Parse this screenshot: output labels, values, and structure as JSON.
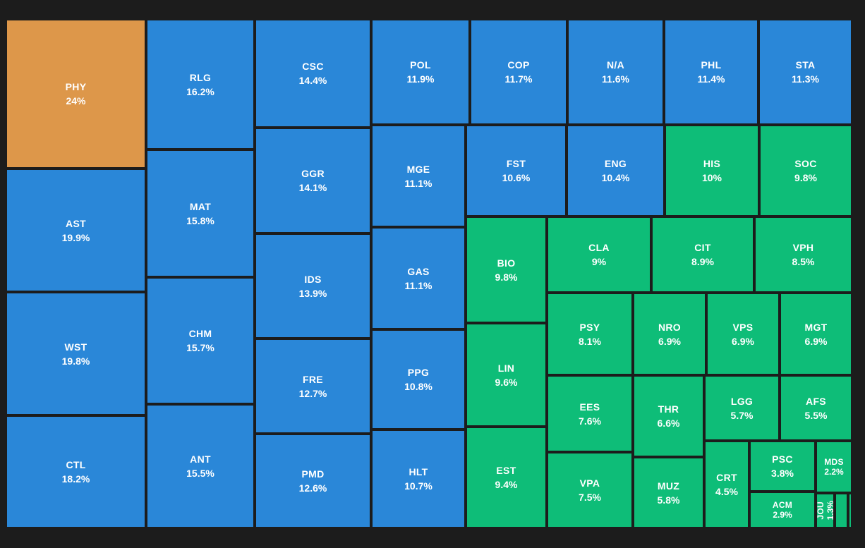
{
  "chart_data": {
    "type": "treemap",
    "colors": {
      "blue": "#2a87d8",
      "green": "#0ebd78",
      "orange": "#dd974a"
    },
    "items": [
      {
        "label": "PHY",
        "value": 24,
        "display": "24%",
        "color": "orange"
      },
      {
        "label": "AST",
        "value": 19.9,
        "display": "19.9%",
        "color": "blue"
      },
      {
        "label": "WST",
        "value": 19.8,
        "display": "19.8%",
        "color": "blue"
      },
      {
        "label": "CTL",
        "value": 18.2,
        "display": "18.2%",
        "color": "blue"
      },
      {
        "label": "RLG",
        "value": 16.2,
        "display": "16.2%",
        "color": "blue"
      },
      {
        "label": "MAT",
        "value": 15.8,
        "display": "15.8%",
        "color": "blue"
      },
      {
        "label": "CHM",
        "value": 15.7,
        "display": "15.7%",
        "color": "blue"
      },
      {
        "label": "ANT",
        "value": 15.5,
        "display": "15.5%",
        "color": "blue"
      },
      {
        "label": "CSC",
        "value": 14.4,
        "display": "14.4%",
        "color": "blue"
      },
      {
        "label": "GGR",
        "value": 14.1,
        "display": "14.1%",
        "color": "blue"
      },
      {
        "label": "IDS",
        "value": 13.9,
        "display": "13.9%",
        "color": "blue"
      },
      {
        "label": "FRE",
        "value": 12.7,
        "display": "12.7%",
        "color": "blue"
      },
      {
        "label": "PMD",
        "value": 12.6,
        "display": "12.6%",
        "color": "blue"
      },
      {
        "label": "POL",
        "value": 11.9,
        "display": "11.9%",
        "color": "blue"
      },
      {
        "label": "MGE",
        "value": 11.1,
        "display": "11.1%",
        "color": "blue"
      },
      {
        "label": "GAS",
        "value": 11.1,
        "display": "11.1%",
        "color": "blue"
      },
      {
        "label": "PPG",
        "value": 10.8,
        "display": "10.8%",
        "color": "blue"
      },
      {
        "label": "HLT",
        "value": 10.7,
        "display": "10.7%",
        "color": "blue"
      },
      {
        "label": "COP",
        "value": 11.7,
        "display": "11.7%",
        "color": "blue"
      },
      {
        "label": "N/A",
        "value": 11.6,
        "display": "11.6%",
        "color": "blue"
      },
      {
        "label": "PHL",
        "value": 11.4,
        "display": "11.4%",
        "color": "blue"
      },
      {
        "label": "STA",
        "value": 11.3,
        "display": "11.3%",
        "color": "blue"
      },
      {
        "label": "FST",
        "value": 10.6,
        "display": "10.6%",
        "color": "blue"
      },
      {
        "label": "ENG",
        "value": 10.4,
        "display": "10.4%",
        "color": "blue"
      },
      {
        "label": "HIS",
        "value": 10,
        "display": "10%",
        "color": "green"
      },
      {
        "label": "SOC",
        "value": 9.8,
        "display": "9.8%",
        "color": "green"
      },
      {
        "label": "BIO",
        "value": 9.8,
        "display": "9.8%",
        "color": "green"
      },
      {
        "label": "LIN",
        "value": 9.6,
        "display": "9.6%",
        "color": "green"
      },
      {
        "label": "EST",
        "value": 9.4,
        "display": "9.4%",
        "color": "green"
      },
      {
        "label": "CLA",
        "value": 9,
        "display": "9%",
        "color": "green"
      },
      {
        "label": "CIT",
        "value": 8.9,
        "display": "8.9%",
        "color": "green"
      },
      {
        "label": "VPH",
        "value": 8.5,
        "display": "8.5%",
        "color": "green"
      },
      {
        "label": "PSY",
        "value": 8.1,
        "display": "8.1%",
        "color": "green"
      },
      {
        "label": "NRO",
        "value": 6.9,
        "display": "6.9%",
        "color": "green"
      },
      {
        "label": "VPS",
        "value": 6.9,
        "display": "6.9%",
        "color": "green"
      },
      {
        "label": "MGT",
        "value": 6.9,
        "display": "6.9%",
        "color": "green"
      },
      {
        "label": "EES",
        "value": 7.6,
        "display": "7.6%",
        "color": "green"
      },
      {
        "label": "THR",
        "value": 6.6,
        "display": "6.6%",
        "color": "green"
      },
      {
        "label": "LGG",
        "value": 5.7,
        "display": "5.7%",
        "color": "green"
      },
      {
        "label": "AFS",
        "value": 5.5,
        "display": "5.5%",
        "color": "green"
      },
      {
        "label": "VPA",
        "value": 7.5,
        "display": "7.5%",
        "color": "green"
      },
      {
        "label": "MUZ",
        "value": 5.8,
        "display": "5.8%",
        "color": "green"
      },
      {
        "label": "CRT",
        "value": 4.5,
        "display": "4.5%",
        "color": "green"
      },
      {
        "label": "PSC",
        "value": 3.8,
        "display": "3.8%",
        "color": "green"
      },
      {
        "label": "MDS",
        "value": 2.2,
        "display": "2.2%",
        "color": "green"
      },
      {
        "label": "ACM",
        "value": 2.9,
        "display": "2.9%",
        "color": "green"
      },
      {
        "label": "JOU",
        "value": 1.3,
        "display": "1.3%",
        "color": "green"
      },
      {
        "label": "",
        "value": 0.5,
        "display": "",
        "color": "green"
      },
      {
        "label": "",
        "value": 0.2,
        "display": "",
        "color": "green"
      }
    ]
  }
}
